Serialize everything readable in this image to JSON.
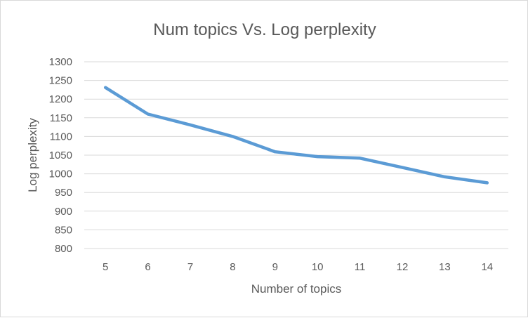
{
  "chart_data": {
    "type": "line",
    "title": "Num topics Vs. Log perplexity",
    "xlabel": "Number of topics",
    "ylabel": "Log perplexity",
    "categories": [
      "5",
      "6",
      "7",
      "8",
      "9",
      "10",
      "11",
      "12",
      "13",
      "14"
    ],
    "series": [
      {
        "values": [
          1231,
          1160,
          1131,
          1100,
          1059,
          1046,
          1042,
          1017,
          992,
          976
        ],
        "color": "#5b9bd5"
      }
    ],
    "ylim": [
      800,
      1300
    ],
    "yticks": [
      "800",
      "850",
      "900",
      "950",
      "1000",
      "1050",
      "1100",
      "1150",
      "1200",
      "1250",
      "1300"
    ],
    "grid": true,
    "legend": "none"
  }
}
